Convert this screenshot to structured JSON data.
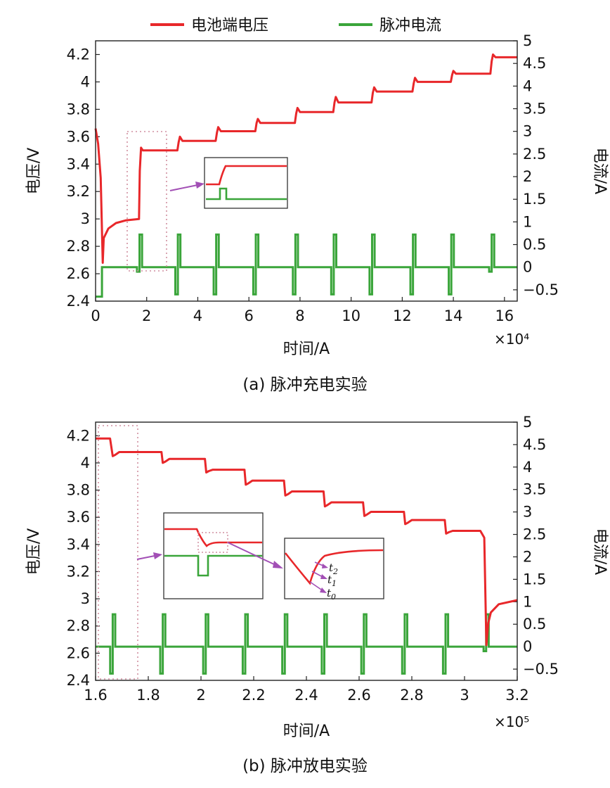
{
  "legend": [
    {
      "label": "电池端电压",
      "color": "#e8272a"
    },
    {
      "label": "脉冲电流",
      "color": "#3aa53a"
    }
  ],
  "colors": {
    "voltage": "#e8272a",
    "current": "#3aa53a",
    "dotted": "#d08fa0",
    "arrow": "#a24fb5"
  },
  "chart_data": [
    {
      "type": "line",
      "caption": "(a) 脉冲充电实验",
      "xlabel": "时间/A",
      "x_multiplier": "×10⁴",
      "xlim": [
        0,
        16.5
      ],
      "xticks": [
        "0",
        "2",
        "4",
        "6",
        "8",
        "10",
        "12",
        "14",
        "16"
      ],
      "ylabel_left": "电压/V",
      "ylim_left": [
        2.4,
        4.3
      ],
      "yticks_left": [
        "2.4",
        "2.6",
        "2.8",
        "3",
        "3.2",
        "3.4",
        "3.6",
        "3.8",
        "4",
        "4.2"
      ],
      "ylabel_right": "电流/A",
      "ylim_right": [
        -0.75,
        5
      ],
      "yticks_right": [
        "−0.5",
        "0",
        "0.5",
        "1",
        "1.5",
        "2",
        "2.5",
        "3",
        "3.5",
        "4",
        "4.5",
        "5"
      ],
      "series": [
        {
          "name": "电池端电压",
          "axis": "left",
          "x": [
            0,
            0.1,
            0.2,
            0.28,
            0.32,
            0.5,
            0.8,
            1.2,
            1.7,
            1.73,
            1.78,
            1.85,
            3.2,
            3.25,
            3.3,
            3.4,
            4.7,
            4.75,
            4.8,
            4.9,
            6.25,
            6.3,
            6.35,
            6.45,
            7.8,
            7.85,
            7.9,
            8.0,
            9.3,
            9.35,
            9.4,
            9.5,
            10.8,
            10.85,
            10.9,
            11.0,
            12.4,
            12.45,
            12.5,
            12.6,
            13.9,
            13.95,
            14.0,
            14.1,
            15.45,
            15.5,
            15.55,
            15.65,
            16.5
          ],
          "y": [
            3.66,
            3.55,
            3.3,
            2.68,
            2.86,
            2.93,
            2.97,
            2.99,
            3.0,
            3.35,
            3.52,
            3.5,
            3.5,
            3.56,
            3.6,
            3.57,
            3.57,
            3.63,
            3.67,
            3.64,
            3.64,
            3.7,
            3.73,
            3.7,
            3.7,
            3.77,
            3.81,
            3.78,
            3.78,
            3.85,
            3.89,
            3.85,
            3.85,
            3.92,
            3.96,
            3.93,
            3.93,
            3.99,
            4.03,
            4.0,
            4.0,
            4.05,
            4.08,
            4.06,
            4.06,
            4.15,
            4.2,
            4.18,
            4.18
          ]
        },
        {
          "name": "脉冲电流",
          "axis": "right",
          "baseline": 0,
          "off_start": [
            0,
            0.25
          ],
          "off_value": -0.65,
          "pulse_peak": 0.72,
          "pulse_at": [
            1.72,
            3.22,
            4.72,
            6.27,
            7.82,
            9.32,
            10.82,
            12.42,
            13.92,
            15.5
          ],
          "pulse_min": [
            -0.1,
            -0.6,
            -0.6,
            -0.6,
            -0.6,
            -0.6,
            -0.6,
            -0.6,
            -0.6,
            -0.1
          ]
        }
      ]
    },
    {
      "type": "line",
      "caption": "(b) 脉冲放电实验",
      "xlabel": "时间/A",
      "x_multiplier": "×10⁵",
      "xlim": [
        1.6,
        3.2
      ],
      "xticks": [
        "1.6",
        "1.8",
        "2",
        "2.2",
        "2.4",
        "2.6",
        "2.8",
        "3",
        "3.2"
      ],
      "ylabel_left": "电压/V",
      "ylim_left": [
        2.4,
        4.3
      ],
      "yticks_left": [
        "2.4",
        "2.6",
        "2.8",
        "3",
        "3.2",
        "3.4",
        "3.6",
        "3.8",
        "4",
        "4.2"
      ],
      "ylabel_right": "电流/A",
      "ylim_right": [
        -0.75,
        5
      ],
      "yticks_right": [
        "−0.5",
        "0",
        "0.5",
        "1",
        "1.5",
        "2",
        "2.5",
        "3",
        "3.5",
        "4",
        "4.5",
        "5"
      ],
      "inset_labels": [
        "t2",
        "t1",
        "t0"
      ],
      "series": [
        {
          "name": "电池端电压",
          "axis": "left",
          "x": [
            1.6,
            1.655,
            1.665,
            1.675,
            1.69,
            1.85,
            1.855,
            1.865,
            1.88,
            2.015,
            2.02,
            2.03,
            2.045,
            2.165,
            2.17,
            2.18,
            2.195,
            2.315,
            2.32,
            2.33,
            2.345,
            2.465,
            2.47,
            2.48,
            2.495,
            2.615,
            2.62,
            2.63,
            2.645,
            2.77,
            2.775,
            2.785,
            2.8,
            2.925,
            2.93,
            2.94,
            2.955,
            3.06,
            3.075,
            3.083,
            3.09,
            3.1,
            3.13,
            3.2
          ],
          "y": [
            4.18,
            4.18,
            4.05,
            4.06,
            4.08,
            4.08,
            4.0,
            4.01,
            4.03,
            4.03,
            3.93,
            3.94,
            3.95,
            3.95,
            3.84,
            3.85,
            3.87,
            3.87,
            3.76,
            3.77,
            3.79,
            3.79,
            3.68,
            3.69,
            3.71,
            3.71,
            3.61,
            3.62,
            3.64,
            3.64,
            3.55,
            3.56,
            3.58,
            3.58,
            3.48,
            3.49,
            3.5,
            3.5,
            3.45,
            2.66,
            2.82,
            2.9,
            2.96,
            2.99
          ]
        },
        {
          "name": "脉冲电流",
          "axis": "right",
          "baseline": 0,
          "pulse_peak": 0.72,
          "pulse_at": [
            1.665,
            1.855,
            2.018,
            2.168,
            2.318,
            2.468,
            2.618,
            2.773,
            2.928,
            3.082
          ],
          "pulse_min": [
            -0.6,
            -0.6,
            -0.6,
            -0.6,
            -0.6,
            -0.6,
            -0.6,
            -0.6,
            -0.6,
            -0.1
          ]
        }
      ]
    }
  ]
}
